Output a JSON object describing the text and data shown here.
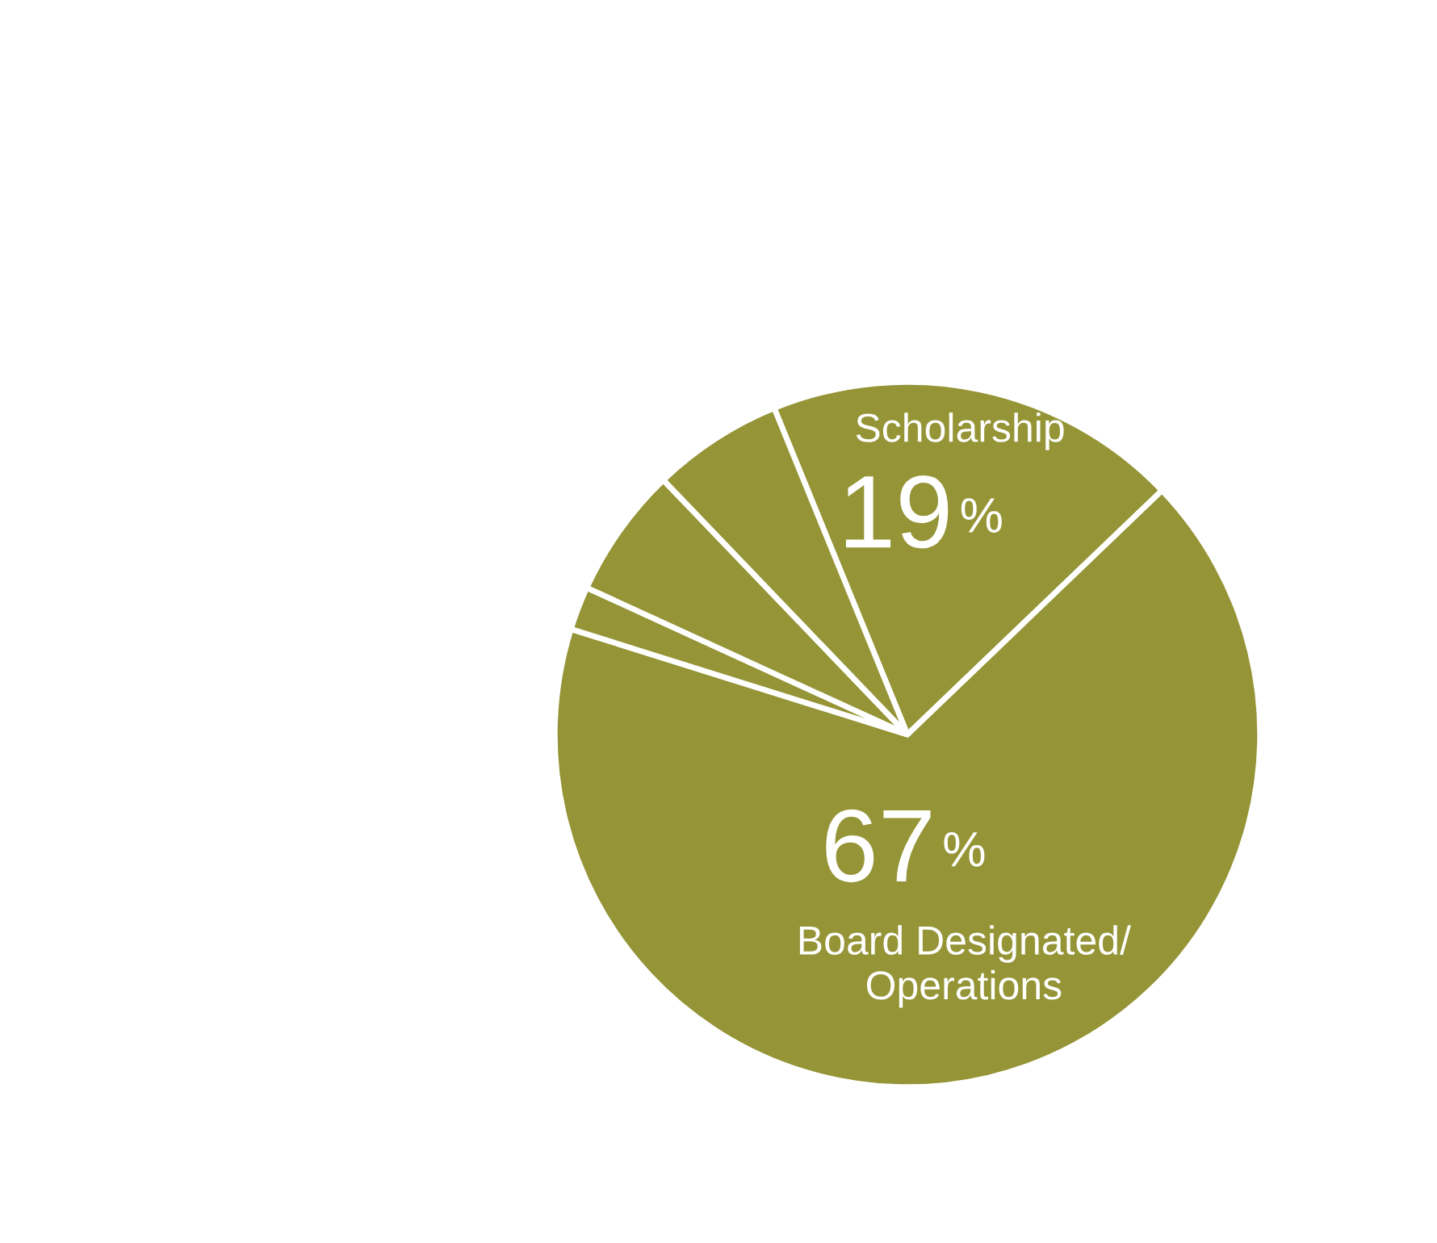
{
  "chart_data": {
    "type": "pie",
    "categories": [
      "Scholarship",
      "Board Designated/\nOperations",
      null,
      null,
      null
    ],
    "values": [
      19,
      67,
      2,
      6,
      6
    ],
    "colors": [
      "#959436",
      "#959436",
      "#959436",
      "#959436",
      "#959436"
    ],
    "value_labels": [
      "19%",
      "67%",
      null,
      null,
      null
    ],
    "legend": false
  }
}
